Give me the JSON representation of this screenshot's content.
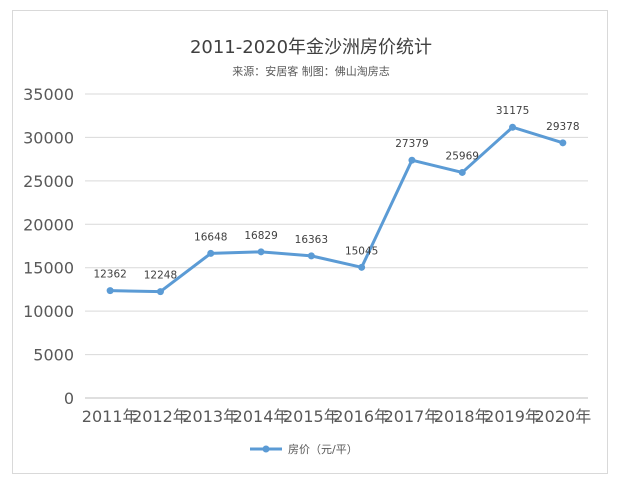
{
  "chart_data": {
    "type": "line",
    "title": "2011-2020年金沙洲房价统计",
    "subtitle": "来源：安居客  制图：佛山淘房志",
    "categories": [
      "2011年",
      "2012年",
      "2013年",
      "2014年",
      "2015年",
      "2016年",
      "2017年",
      "2018年",
      "2019年",
      "2020年"
    ],
    "series": [
      {
        "name": "房价（元/平）",
        "values": [
          12362,
          12248,
          16648,
          16829,
          16363,
          15045,
          27379,
          25969,
          31175,
          29378
        ],
        "color": "#5b9bd5"
      }
    ],
    "ylim": [
      0,
      35000
    ],
    "yticks": [
      0,
      5000,
      10000,
      15000,
      20000,
      25000,
      30000,
      35000
    ],
    "grid": true,
    "legend": "bottom",
    "data_labels": true
  }
}
